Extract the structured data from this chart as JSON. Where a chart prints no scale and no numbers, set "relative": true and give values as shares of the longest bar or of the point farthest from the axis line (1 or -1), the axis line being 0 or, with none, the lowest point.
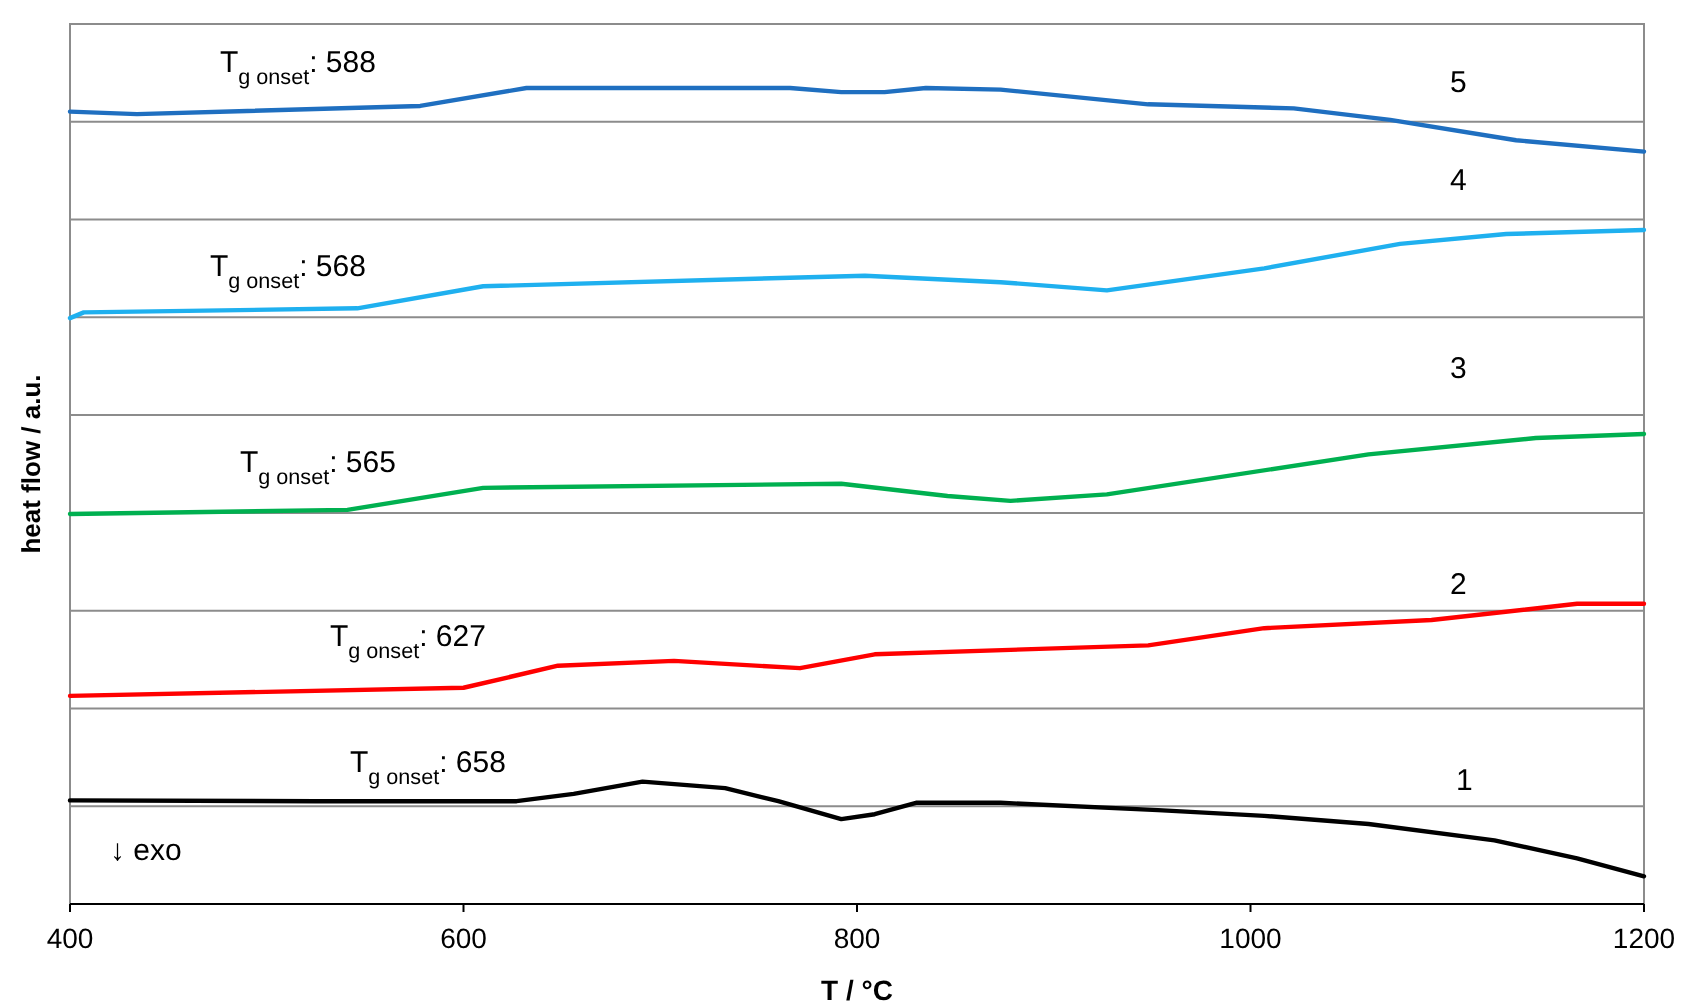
{
  "chart_data": {
    "type": "line",
    "relative": true,
    "xlabel": "T / °C",
    "ylabel": "heat flow / a.u.",
    "xlim": [
      400,
      1200
    ],
    "xticks": [
      400,
      600,
      800,
      1000,
      1200
    ],
    "grid": "y",
    "line_style": "solid",
    "series": [
      {
        "name": "1",
        "color": "#000000",
        "x": [
          400,
          525,
          627,
          656,
          691,
          733,
          760,
          792,
          809,
          830,
          873,
          953,
          1007,
          1060,
          1124,
          1166,
          1200
        ],
        "values": [
          0.127,
          0.126,
          0.126,
          0.135,
          0.15,
          0.142,
          0.126,
          0.104,
          0.11,
          0.124,
          0.124,
          0.115,
          0.108,
          0.098,
          0.078,
          0.056,
          0.034
        ]
      },
      {
        "name": "2",
        "color": "#ff0000",
        "x": [
          400,
          600,
          648,
          707,
          771,
          809,
          948,
          1007,
          1092,
          1166,
          1200
        ],
        "values": [
          0.255,
          0.265,
          0.292,
          0.298,
          0.289,
          0.306,
          0.317,
          0.338,
          0.348,
          0.368,
          0.368
        ]
      },
      {
        "name": "3",
        "color": "#00b050",
        "x": [
          400,
          541,
          610,
          792,
          846,
          878,
          927,
          1060,
          1145,
          1200
        ],
        "values": [
          0.478,
          0.483,
          0.51,
          0.515,
          0.5,
          0.494,
          0.502,
          0.551,
          0.571,
          0.576
        ]
      },
      {
        "name": "4",
        "color": "#1fb0ef",
        "x": [
          400,
          407,
          546,
          610,
          804,
          873,
          927,
          1007,
          1076,
          1130,
          1200
        ],
        "values": [
          0.718,
          0.725,
          0.73,
          0.757,
          0.77,
          0.762,
          0.752,
          0.779,
          0.809,
          0.821,
          0.826
        ]
      },
      {
        "name": "5",
        "color": "#1f6fc0",
        "x": [
          400,
          434,
          578,
          632,
          766,
          792,
          814,
          835,
          873,
          948,
          1022,
          1071,
          1135,
          1200
        ],
        "values": [
          0.971,
          0.968,
          0.978,
          1.0,
          1.0,
          0.995,
          0.995,
          1.0,
          0.998,
          0.98,
          0.975,
          0.961,
          0.936,
          0.922
        ]
      }
    ],
    "annotations": [
      "T$_{g onset}$: 658",
      "T$_{g onset}$: 627",
      "T$_{g onset}$: 565",
      "T$_{g onset}$: 568",
      "T$_{g onset}$: 588",
      "↓ exo"
    ]
  }
}
